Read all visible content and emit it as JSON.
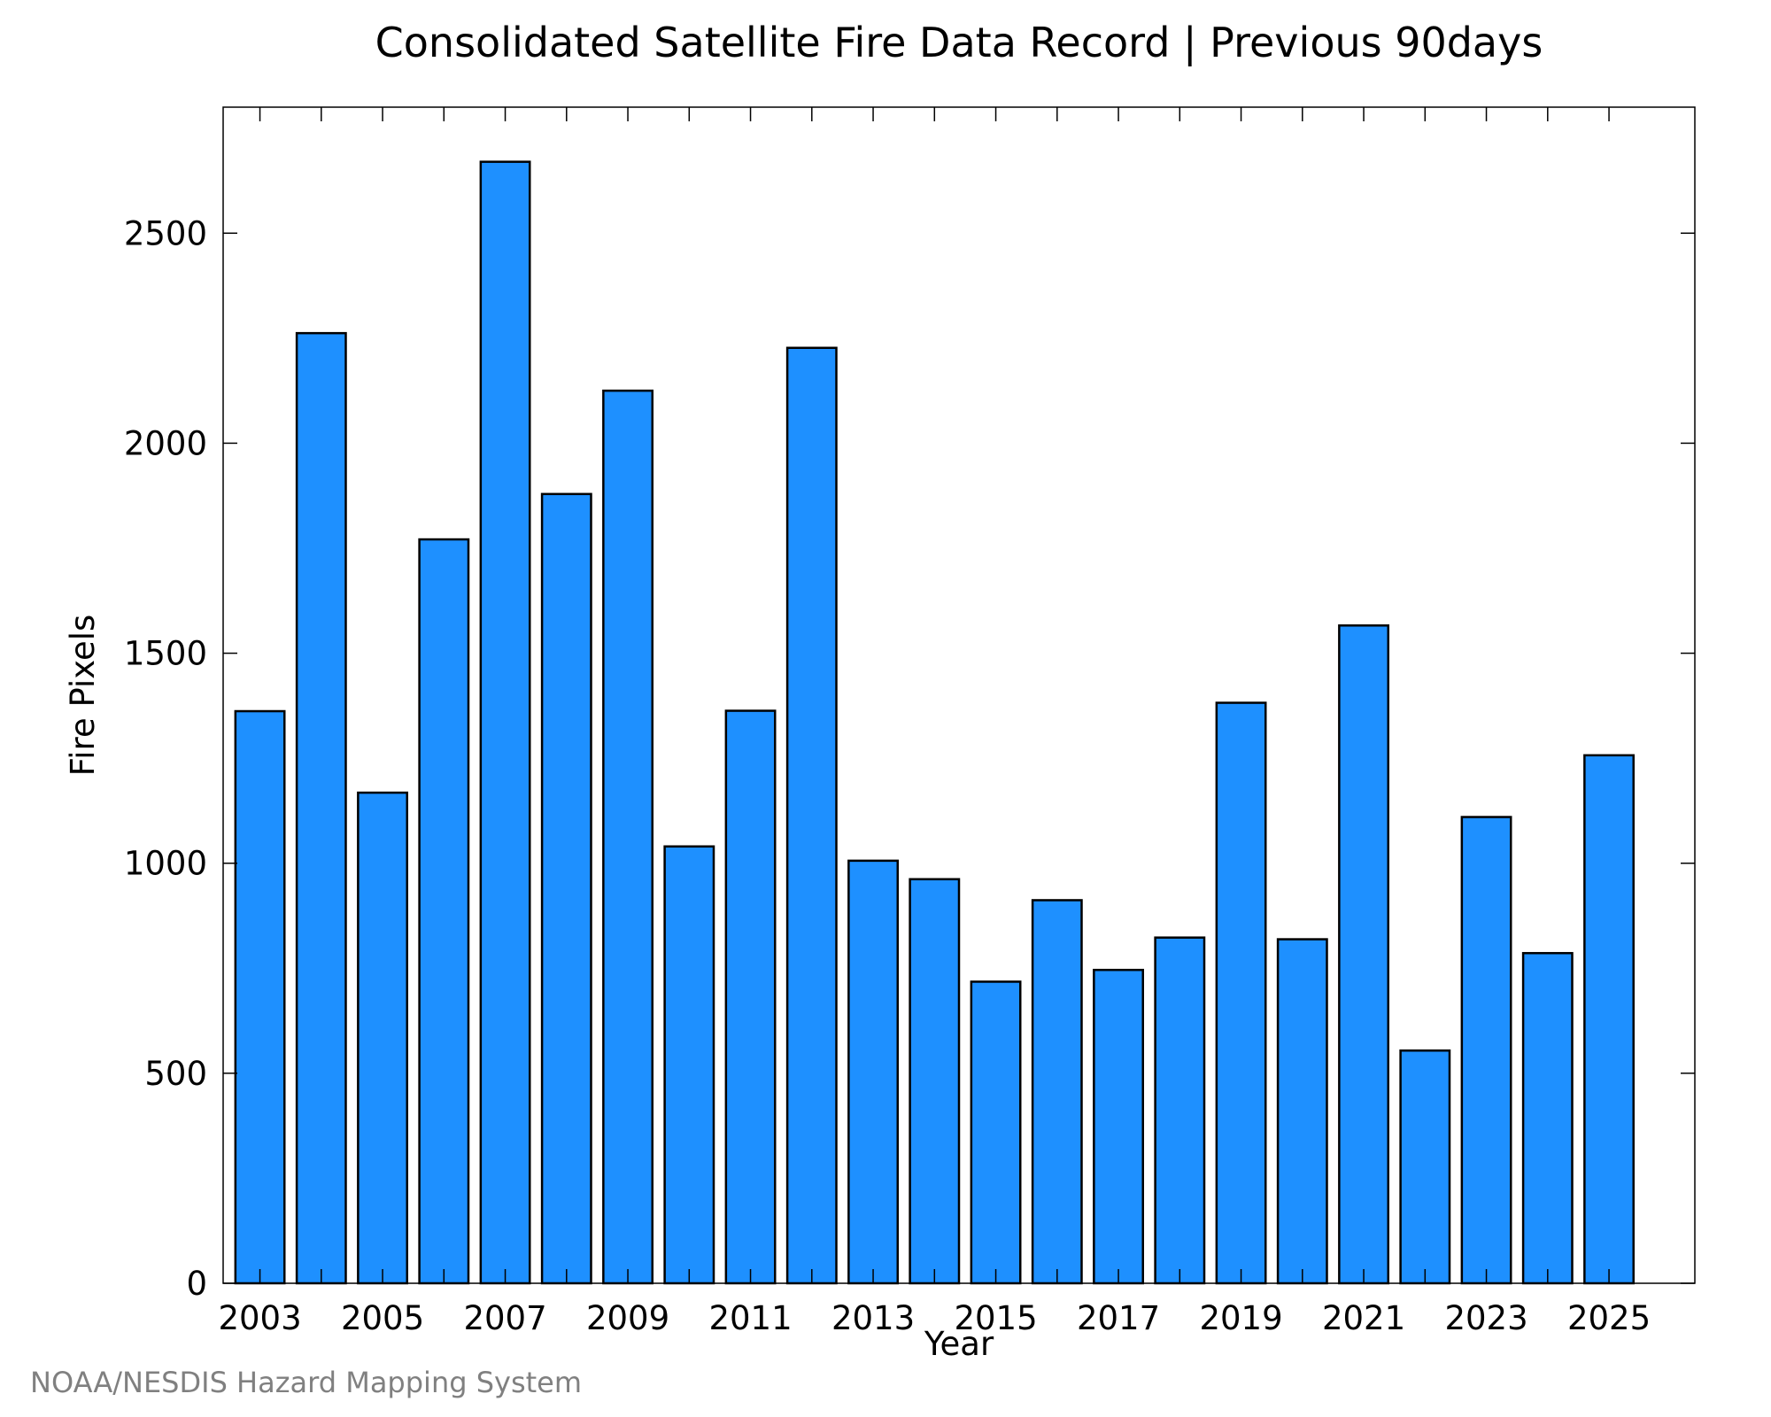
{
  "chart_data": {
    "type": "bar",
    "title": "Consolidated Satellite Fire Data Record | Previous 90days",
    "xlabel": "Year",
    "ylabel": "Fire Pixels",
    "categories": [
      "2003",
      "2004",
      "2005",
      "2006",
      "2007",
      "2008",
      "2009",
      "2010",
      "2011",
      "2012",
      "2013",
      "2014",
      "2015",
      "2016",
      "2017",
      "2018",
      "2019",
      "2020",
      "2021",
      "2022",
      "2023",
      "2024",
      "2025"
    ],
    "values": [
      1362,
      2262,
      1168,
      1771,
      2670,
      1879,
      2125,
      1040,
      1363,
      2227,
      1006,
      962,
      718,
      912,
      746,
      823,
      1382,
      819,
      1566,
      554,
      1110,
      786,
      1257
    ],
    "xticks": [
      "2003",
      "2005",
      "2007",
      "2009",
      "2011",
      "2013",
      "2015",
      "2017",
      "2019",
      "2021",
      "2023",
      "2025"
    ],
    "yticks": [
      0,
      500,
      1000,
      1500,
      2000,
      2500
    ],
    "ylim": [
      0,
      2800
    ],
    "grid": false,
    "bar_color": "#1e90ff",
    "credit": "NOAA/NESDIS Hazard Mapping System"
  }
}
